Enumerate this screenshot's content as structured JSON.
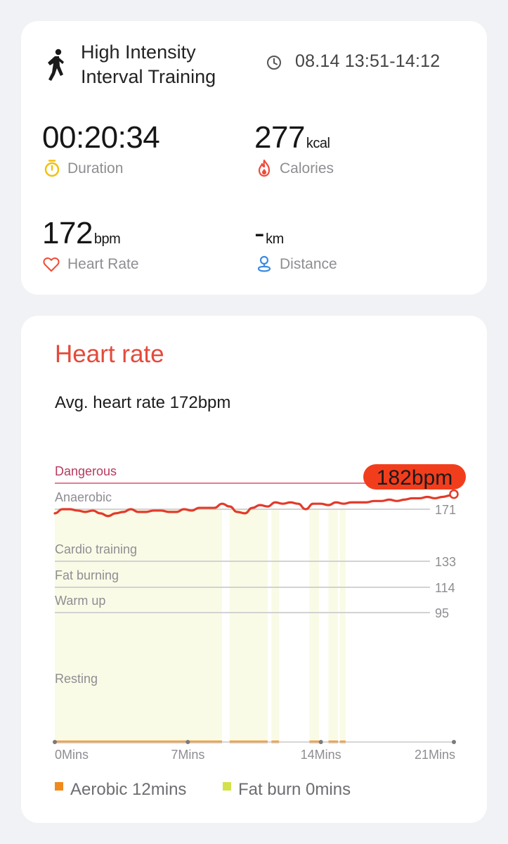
{
  "workout": {
    "icon": "running-person-icon",
    "title_line1": "High Intensity",
    "title_line2": "Interval Training",
    "time_icon": "clock-icon",
    "time_range": "08.14 13:51-14:12"
  },
  "stats": {
    "duration": {
      "value": "00:20:34",
      "unit": "",
      "label": "Duration",
      "icon": "stopwatch-icon",
      "color": "#f2c00c"
    },
    "calories": {
      "value": "277",
      "unit": "kcal",
      "label": "Calories",
      "icon": "flame-icon",
      "color": "#ee4b3a"
    },
    "heart_rate": {
      "value": "172",
      "unit": "bpm",
      "label": "Heart Rate",
      "icon": "heart-icon",
      "color": "#ee4b3a"
    },
    "distance": {
      "value": "-",
      "unit": "km",
      "label": "Distance",
      "icon": "location-pin-icon",
      "color": "#3b8be2"
    }
  },
  "heart_rate_section": {
    "title": "Heart rate",
    "avg_text": "Avg. heart rate 172bpm",
    "max_badge": "182bpm",
    "legend": [
      {
        "label": "Aerobic 12mins",
        "color": "#f08a1c"
      },
      {
        "label": "Fat burn 0mins",
        "color": "#d4e14a"
      }
    ]
  },
  "chart_data": {
    "type": "line",
    "title": "Heart rate",
    "xlabel": "",
    "ylabel": "",
    "x_ticks": [
      "0Mins",
      "7Mins",
      "14Mins",
      "21Mins"
    ],
    "x_tick_values": [
      0,
      7,
      14,
      21
    ],
    "xlim": [
      0,
      21
    ],
    "zones": [
      {
        "name": "Dangerous",
        "min": 190
      },
      {
        "name": "Anaerobic",
        "min": 171
      },
      {
        "name": "Cardio training",
        "min": 133
      },
      {
        "name": "Fat burning",
        "min": 114
      },
      {
        "name": "Warm up",
        "min": 95
      },
      {
        "name": "Resting",
        "min": 0
      }
    ],
    "y_ticks": [
      171,
      133,
      114,
      95
    ],
    "max_value": 182,
    "series": [
      {
        "x": [
          0,
          0.4,
          0.8,
          1.2,
          1.6,
          2.0,
          2.4,
          2.8,
          3.2,
          3.6,
          4.0,
          4.4,
          4.8,
          5.2,
          5.6,
          6.0,
          6.4,
          6.8,
          7.2,
          7.6,
          8.0,
          8.4,
          8.8,
          9.2,
          9.6,
          10.0,
          10.4,
          10.8,
          11.2,
          11.6,
          12.0,
          12.4,
          12.8,
          13.2,
          13.6,
          14.0,
          14.4,
          14.8,
          15.2,
          15.6,
          16.0,
          16.4,
          16.8,
          17.2,
          17.6,
          18.0,
          18.4,
          18.8,
          19.2,
          19.6,
          20.0,
          20.4,
          20.8,
          21.0
        ],
        "values": [
          168,
          171,
          171,
          170,
          169,
          170,
          168,
          166,
          168,
          169,
          171,
          169,
          169,
          170,
          170,
          169,
          169,
          171,
          170,
          172,
          172,
          172,
          175,
          173,
          169,
          168,
          172,
          174,
          173,
          176,
          175,
          176,
          175,
          171,
          175,
          175,
          174,
          176,
          175,
          176,
          176,
          176,
          177,
          177,
          178,
          177,
          178,
          179,
          179,
          180,
          179,
          180,
          181,
          182
        ]
      }
    ],
    "aerobic_periods": [
      [
        0,
        8.8
      ],
      [
        9.2,
        11.2
      ],
      [
        11.4,
        11.8
      ],
      [
        13.4,
        13.9
      ],
      [
        14.4,
        14.9
      ],
      [
        15.0,
        15.3
      ]
    ]
  }
}
